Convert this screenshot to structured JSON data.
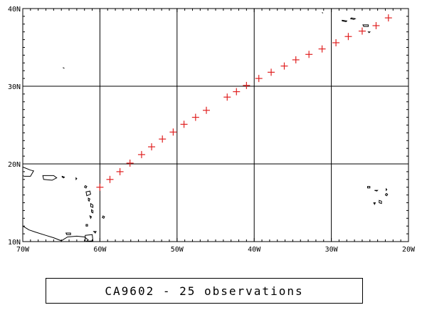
{
  "caption": "CA9602 - 25 observations",
  "map": {
    "lon_range": [
      -70,
      -20
    ],
    "lat_range": [
      10,
      40
    ],
    "x_ticks": [
      {
        "value": -70,
        "label": "70W"
      },
      {
        "value": -60,
        "label": "60W"
      },
      {
        "value": -50,
        "label": "50W"
      },
      {
        "value": -40,
        "label": "40W"
      },
      {
        "value": -30,
        "label": "30W"
      },
      {
        "value": -20,
        "label": "20W"
      }
    ],
    "y_ticks": [
      {
        "value": 10,
        "label": "10N"
      },
      {
        "value": 20,
        "label": "20N"
      },
      {
        "value": 30,
        "label": "30N"
      },
      {
        "value": 40,
        "label": "40N"
      }
    ],
    "grid": true,
    "marker_color": "#e02020",
    "line_color": "#000000"
  },
  "observations": [
    {
      "lon": -60.0,
      "lat": 17.0
    },
    {
      "lon": -58.7,
      "lat": 18.0
    },
    {
      "lon": -57.4,
      "lat": 19.0
    },
    {
      "lon": -56.1,
      "lat": 20.1
    },
    {
      "lon": -54.6,
      "lat": 21.2
    },
    {
      "lon": -53.3,
      "lat": 22.2
    },
    {
      "lon": -51.9,
      "lat": 23.2
    },
    {
      "lon": -50.5,
      "lat": 24.1
    },
    {
      "lon": -49.1,
      "lat": 25.1
    },
    {
      "lon": -47.6,
      "lat": 26.0
    },
    {
      "lon": -46.2,
      "lat": 26.9
    },
    {
      "lon": -43.5,
      "lat": 28.6
    },
    {
      "lon": -42.3,
      "lat": 29.3
    },
    {
      "lon": -41.0,
      "lat": 30.1
    },
    {
      "lon": -39.4,
      "lat": 31.0
    },
    {
      "lon": -37.8,
      "lat": 31.8
    },
    {
      "lon": -36.1,
      "lat": 32.6
    },
    {
      "lon": -34.6,
      "lat": 33.4
    },
    {
      "lon": -32.9,
      "lat": 34.1
    },
    {
      "lon": -31.2,
      "lat": 34.8
    },
    {
      "lon": -29.4,
      "lat": 35.6
    },
    {
      "lon": -27.8,
      "lat": 36.4
    },
    {
      "lon": -26.0,
      "lat": 37.1
    },
    {
      "lon": -24.2,
      "lat": 37.8
    },
    {
      "lon": -22.6,
      "lat": 38.8
    }
  ],
  "landmasses": [
    {
      "name": "hispaniola",
      "points": [
        [
          -70,
          19.6
        ],
        [
          -69,
          19.2
        ],
        [
          -68.6,
          19.1
        ],
        [
          -69,
          18.4
        ],
        [
          -69.8,
          18.4
        ],
        [
          -70,
          18.5
        ]
      ]
    },
    {
      "name": "puerto-rico",
      "points": [
        [
          -67.4,
          18.5
        ],
        [
          -66.0,
          18.5
        ],
        [
          -65.6,
          18.2
        ],
        [
          -66.2,
          17.9
        ],
        [
          -67.3,
          18.0
        ]
      ]
    },
    {
      "name": "virgin-islands",
      "points": [
        [
          -64.9,
          18.4
        ],
        [
          -64.6,
          18.3
        ],
        [
          -64.7,
          18.2
        ],
        [
          -64.9,
          18.3
        ]
      ]
    },
    {
      "name": "anguilla",
      "points": [
        [
          -63.1,
          18.2
        ],
        [
          -63.0,
          18.1
        ],
        [
          -63.1,
          18.0
        ]
      ]
    },
    {
      "name": "antigua",
      "points": [
        [
          -61.9,
          17.2
        ],
        [
          -61.7,
          17.1
        ],
        [
          -61.8,
          16.9
        ],
        [
          -62.0,
          17.0
        ]
      ]
    },
    {
      "name": "guadeloupe",
      "points": [
        [
          -61.8,
          16.4
        ],
        [
          -61.3,
          16.5
        ],
        [
          -61.2,
          16.1
        ],
        [
          -61.7,
          15.9
        ]
      ]
    },
    {
      "name": "dominica",
      "points": [
        [
          -61.5,
          15.6
        ],
        [
          -61.3,
          15.5
        ],
        [
          -61.4,
          15.2
        ],
        [
          -61.5,
          15.3
        ]
      ]
    },
    {
      "name": "martinique",
      "points": [
        [
          -61.2,
          14.9
        ],
        [
          -60.9,
          14.7
        ],
        [
          -60.9,
          14.4
        ],
        [
          -61.2,
          14.5
        ]
      ]
    },
    {
      "name": "st-lucia",
      "points": [
        [
          -61.1,
          14.1
        ],
        [
          -60.9,
          14.0
        ],
        [
          -60.9,
          13.7
        ],
        [
          -61.1,
          13.8
        ]
      ]
    },
    {
      "name": "barbados",
      "points": [
        [
          -59.6,
          13.3
        ],
        [
          -59.4,
          13.2
        ],
        [
          -59.5,
          13.0
        ],
        [
          -59.7,
          13.1
        ]
      ]
    },
    {
      "name": "st-vincent",
      "points": [
        [
          -61.3,
          13.3
        ],
        [
          -61.1,
          13.2
        ],
        [
          -61.2,
          13.0
        ]
      ]
    },
    {
      "name": "grenada",
      "points": [
        [
          -61.8,
          12.2
        ],
        [
          -61.6,
          12.2
        ],
        [
          -61.6,
          12.0
        ],
        [
          -61.8,
          12.0
        ]
      ]
    },
    {
      "name": "south-america",
      "points": [
        [
          -70,
          12.0
        ],
        [
          -69.2,
          11.5
        ],
        [
          -68.3,
          11.2
        ],
        [
          -67.0,
          10.8
        ],
        [
          -66.0,
          10.5
        ],
        [
          -65.0,
          10.1
        ],
        [
          -64.2,
          10.6
        ],
        [
          -63.0,
          10.7
        ],
        [
          -62.0,
          10.6
        ],
        [
          -61.5,
          10.2
        ],
        [
          -61.8,
          10.0
        ]
      ]
    },
    {
      "name": "trinidad",
      "points": [
        [
          -61.9,
          10.8
        ],
        [
          -61.0,
          10.9
        ],
        [
          -60.9,
          10.1
        ],
        [
          -61.9,
          10.0
        ]
      ]
    },
    {
      "name": "tobago",
      "points": [
        [
          -60.8,
          11.3
        ],
        [
          -60.5,
          11.3
        ],
        [
          -60.6,
          11.1
        ]
      ]
    },
    {
      "name": "margarita",
      "points": [
        [
          -64.4,
          11.1
        ],
        [
          -63.8,
          11.1
        ],
        [
          -63.8,
          10.9
        ],
        [
          -64.3,
          10.9
        ]
      ]
    },
    {
      "name": "bermuda",
      "points": [
        [
          -64.8,
          32.4
        ],
        [
          -64.6,
          32.3
        ]
      ]
    },
    {
      "name": "azores-flores",
      "points": [
        [
          -31.2,
          39.5
        ],
        [
          -31.1,
          39.4
        ]
      ]
    },
    {
      "name": "azores-terceira",
      "points": [
        [
          -27.4,
          38.8
        ],
        [
          -26.9,
          38.7
        ],
        [
          -27.1,
          38.6
        ],
        [
          -27.5,
          38.7
        ]
      ]
    },
    {
      "name": "azores-pico",
      "points": [
        [
          -28.6,
          38.5
        ],
        [
          -28.0,
          38.4
        ],
        [
          -28.1,
          38.3
        ],
        [
          -28.6,
          38.4
        ]
      ]
    },
    {
      "name": "azores-sao-miguel",
      "points": [
        [
          -25.9,
          37.9
        ],
        [
          -25.2,
          37.9
        ],
        [
          -25.2,
          37.7
        ],
        [
          -25.8,
          37.7
        ]
      ]
    },
    {
      "name": "azores-santa-maria",
      "points": [
        [
          -25.2,
          37.0
        ],
        [
          -25.0,
          37.0
        ],
        [
          -25.1,
          36.9
        ]
      ]
    },
    {
      "name": "cape-verde-santo-antao",
      "points": [
        [
          -25.3,
          17.1
        ],
        [
          -25.0,
          17.1
        ],
        [
          -25.0,
          16.9
        ],
        [
          -25.3,
          16.9
        ]
      ]
    },
    {
      "name": "cape-verde-sao-nicolau",
      "points": [
        [
          -24.4,
          16.6
        ],
        [
          -24.0,
          16.6
        ],
        [
          -24.1,
          16.5
        ]
      ]
    },
    {
      "name": "cape-verde-sal",
      "points": [
        [
          -22.9,
          16.8
        ],
        [
          -22.8,
          16.7
        ],
        [
          -22.9,
          16.6
        ]
      ]
    },
    {
      "name": "cape-verde-boa-vista",
      "points": [
        [
          -22.9,
          16.2
        ],
        [
          -22.7,
          16.1
        ],
        [
          -22.8,
          15.9
        ],
        [
          -23.0,
          16.0
        ]
      ]
    },
    {
      "name": "cape-verde-santiago",
      "points": [
        [
          -23.8,
          15.3
        ],
        [
          -23.5,
          15.2
        ],
        [
          -23.5,
          14.9
        ],
        [
          -23.8,
          15.0
        ]
      ]
    },
    {
      "name": "cape-verde-fogo",
      "points": [
        [
          -24.5,
          15.0
        ],
        [
          -24.3,
          15.0
        ],
        [
          -24.4,
          14.8
        ]
      ]
    }
  ]
}
